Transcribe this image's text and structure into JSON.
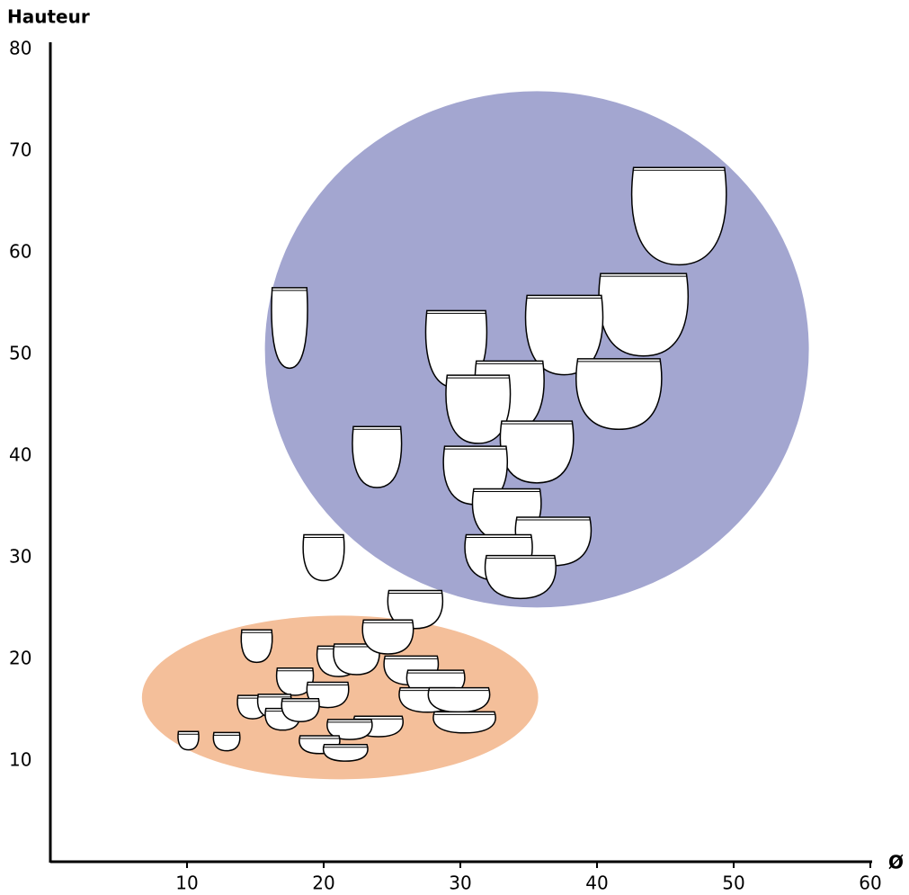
{
  "chart_data": {
    "type": "scatter",
    "xlabel": "Ø",
    "ylabel": "Hauteur",
    "xlim": [
      0,
      60
    ],
    "ylim": [
      0,
      80
    ],
    "xticks": [
      10,
      20,
      30,
      40,
      50,
      60
    ],
    "yticks": [
      10,
      20,
      30,
      40,
      50,
      60,
      70,
      80
    ],
    "regions": [
      {
        "color": "#a3a6d0",
        "x": [
          15.7,
          55.5
        ],
        "y": [
          25.1,
          75.9
        ]
      },
      {
        "color": "#f4bf9a",
        "x": [
          6.7,
          35.7
        ],
        "y": [
          8.2,
          24.3
        ]
      }
    ],
    "color": "#ffffff",
    "x": [
      46.0,
      43.4,
      37.6,
      17.5,
      29.7,
      41.6,
      33.6,
      31.3,
      35.6,
      23.9,
      31.1,
      33.4,
      36.8,
      32.8,
      34.4,
      20.0,
      26.7,
      15.1,
      21.1,
      22.4,
      24.7,
      26.4,
      28.2,
      17.9,
      20.3,
      27.6,
      29.9,
      14.8,
      16.4,
      17.0,
      18.3,
      24.0,
      21.9,
      30.3,
      10.1,
      12.9,
      19.7,
      21.6
    ],
    "values": [
      63.6,
      53.9,
      51.9,
      52.6,
      50.5,
      46.1,
      45.9,
      44.6,
      40.4,
      39.9,
      38.1,
      34.2,
      31.6,
      30.0,
      28.1,
      30.0,
      24.9,
      21.3,
      19.8,
      20.0,
      22.2,
      18.9,
      17.6,
      17.8,
      16.5,
      16.0,
      16.0,
      15.3,
      15.4,
      14.1,
      15.0,
      13.4,
      13.1,
      13.8,
      12.0,
      11.9,
      11.6,
      10.8
    ]
  }
}
